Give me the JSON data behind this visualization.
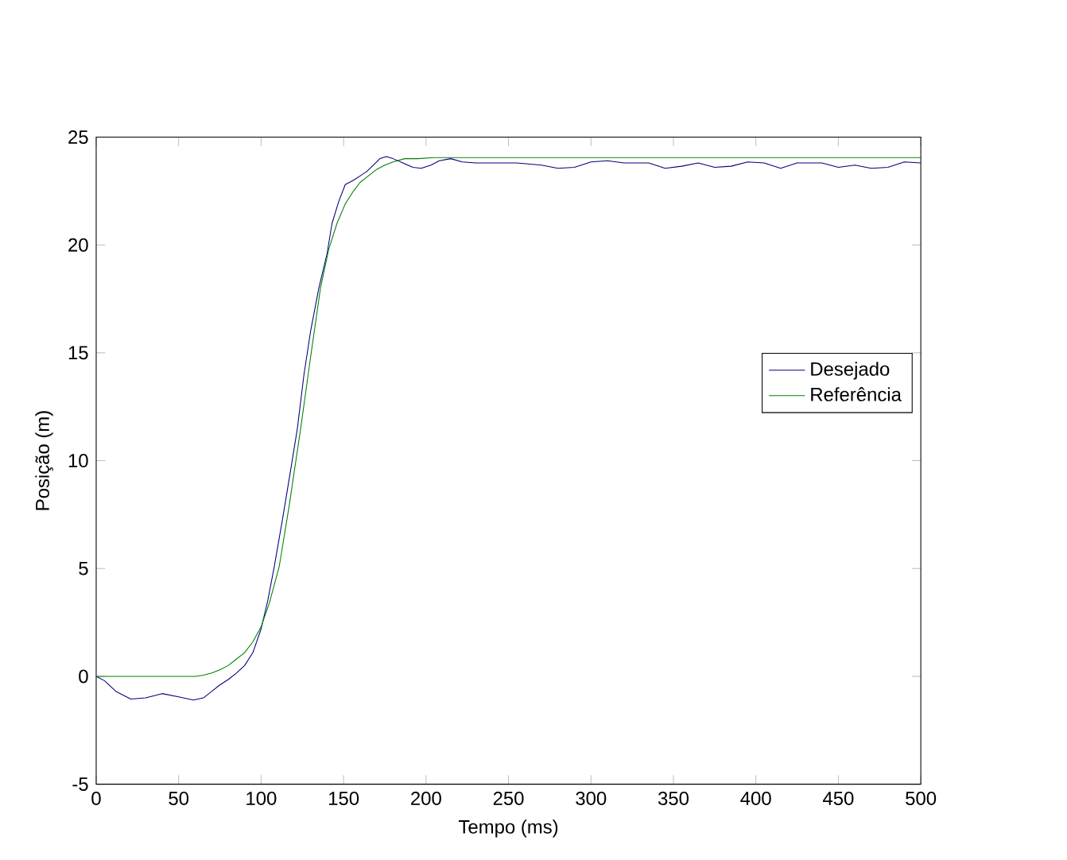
{
  "chart_data": {
    "type": "line",
    "xlabel": "Tempo (ms)",
    "ylabel": "Posição (m)",
    "xlim": [
      0,
      500
    ],
    "ylim": [
      -5,
      25
    ],
    "xticks": [
      0,
      50,
      100,
      150,
      200,
      250,
      300,
      350,
      400,
      450,
      500
    ],
    "yticks": [
      -5,
      0,
      5,
      10,
      15,
      20,
      25
    ],
    "grid": false,
    "legend": "right",
    "series": [
      {
        "name": "Desejado",
        "color": "#00007f",
        "x": [
          0,
          5,
          12,
          21,
          30,
          40,
          50,
          59,
          65,
          70,
          75,
          80,
          85,
          90,
          95,
          100,
          104,
          108,
          113,
          118,
          122,
          126,
          130,
          135,
          140,
          143,
          147,
          151,
          156,
          160,
          164,
          168,
          172,
          176,
          180,
          186,
          192,
          197,
          203,
          208,
          215,
          222,
          230,
          240,
          255,
          270,
          280,
          290,
          300,
          310,
          320,
          335,
          345,
          355,
          365,
          375,
          385,
          395,
          405,
          415,
          425,
          440,
          450,
          460,
          470,
          480,
          490,
          500
        ],
        "values": [
          0,
          -0.2,
          -0.7,
          -1.05,
          -1.0,
          -0.8,
          -0.95,
          -1.1,
          -1.0,
          -0.7,
          -0.4,
          -0.15,
          0.15,
          0.5,
          1.1,
          2.2,
          3.5,
          5.1,
          7.3,
          9.6,
          11.5,
          14.0,
          16.0,
          18.0,
          19.6,
          21.0,
          22.0,
          22.8,
          23.0,
          23.2,
          23.4,
          23.7,
          24.0,
          24.1,
          24.0,
          23.8,
          23.6,
          23.55,
          23.7,
          23.9,
          24.0,
          23.85,
          23.8,
          23.8,
          23.8,
          23.7,
          23.55,
          23.6,
          23.85,
          23.9,
          23.8,
          23.8,
          23.55,
          23.65,
          23.8,
          23.6,
          23.65,
          23.85,
          23.8,
          23.55,
          23.8,
          23.8,
          23.6,
          23.7,
          23.55,
          23.6,
          23.85,
          23.8
        ]
      },
      {
        "name": "Referência",
        "color": "#007f00",
        "x": [
          0,
          60,
          65,
          70,
          75,
          80,
          85,
          90,
          95,
          100,
          105,
          111,
          117,
          124,
          130,
          136,
          141,
          146,
          151,
          156,
          160,
          165,
          170,
          175,
          180,
          187,
          195,
          205,
          220,
          300,
          400,
          500
        ],
        "values": [
          0,
          0,
          0.05,
          0.15,
          0.3,
          0.5,
          0.8,
          1.1,
          1.6,
          2.3,
          3.4,
          5.1,
          7.9,
          11.5,
          14.8,
          18.0,
          19.8,
          21.0,
          21.9,
          22.5,
          22.9,
          23.2,
          23.5,
          23.7,
          23.85,
          24.0,
          24.0,
          24.05,
          24.05,
          24.05,
          24.05,
          24.05
        ]
      }
    ]
  }
}
